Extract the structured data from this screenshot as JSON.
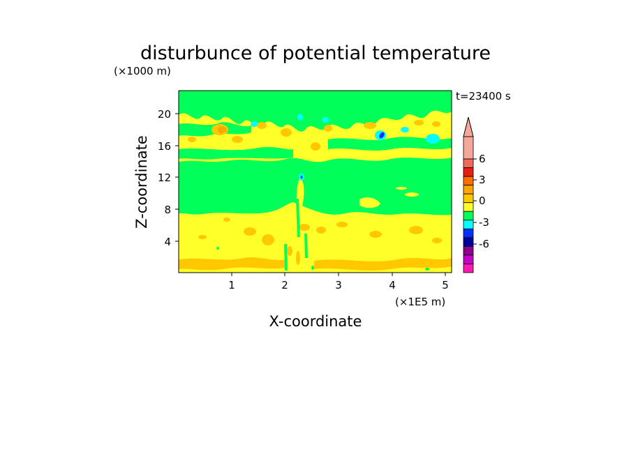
{
  "chart_data": {
    "type": "heatmap",
    "title": "disturbunce of potential temperature",
    "time_label": "t=23400 s",
    "xlabel": "X-coordinate",
    "x_unit_label": "(×1E5 m)",
    "ylabel": "Z-coordinate",
    "y_unit_label": "(×1000 m)",
    "x_ticks": [
      "1",
      "2",
      "3",
      "4",
      "5"
    ],
    "y_ticks": [
      "4",
      "8",
      "12",
      "16",
      "20"
    ],
    "xlim": [
      0,
      5.1
    ],
    "ylim": [
      0,
      22.8
    ],
    "colorbar": {
      "tick_labels": [
        "6",
        "3",
        "0",
        "-3",
        "-6"
      ],
      "levels": [
        {
          "range": "> 8",
          "color": "#f4a79a"
        },
        {
          "range": "7 to 8",
          "color": "#f4a79a"
        },
        {
          "range": "5 to 7",
          "color": "#f06a5c"
        },
        {
          "range": "4 to 5",
          "color": "#e8200e"
        },
        {
          "range": "3 to 4",
          "color": "#ff6e00"
        },
        {
          "range": "2 to 3",
          "color": "#ffa500"
        },
        {
          "range": "1 to 2",
          "color": "#ffc800"
        },
        {
          "range": "0 to 1",
          "color": "#ffff2a"
        },
        {
          "range": "-1 to 0",
          "color": "#00ff59"
        },
        {
          "range": "-2 to -1",
          "color": "#00ffff"
        },
        {
          "range": "-3 to -2",
          "color": "#0032ff"
        },
        {
          "range": "-4 to -3",
          "color": "#00009a"
        },
        {
          "range": "-5 to -4",
          "color": "#8c008c"
        },
        {
          "range": "-6 to -5",
          "color": "#c800c8"
        },
        {
          "range": "< -6",
          "color": "#ff1ab4"
        }
      ]
    },
    "field_description_regions": [
      {
        "z_range": [
          0,
          7.5
        ],
        "dominant_value": "0 to 1",
        "note": "yellow lower layer with scattered 1–2 patches"
      },
      {
        "z_range": [
          7.5,
          14.5
        ],
        "dominant_value": "-1 to 0",
        "note": "green mid layer"
      },
      {
        "z_range": [
          14.5,
          20
        ],
        "dominant_value": "0 to 1",
        "note": "yellow band with orange and cyan patches"
      },
      {
        "z_range": [
          20,
          22.8
        ],
        "dominant_value": "mixed 0 to 1 and -1 to 0",
        "note": "top layer"
      }
    ]
  }
}
